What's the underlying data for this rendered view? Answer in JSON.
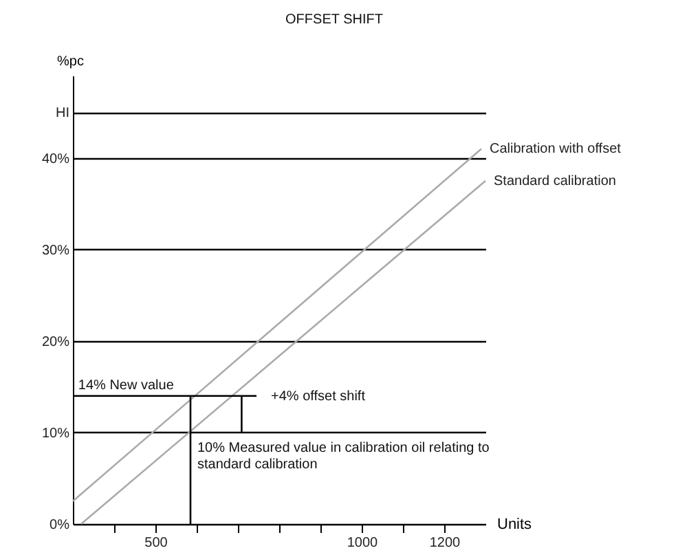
{
  "chart_data": {
    "type": "line",
    "title": "OFFSET SHIFT",
    "xlabel": "Units",
    "ylabel": "%pc",
    "xlim": [
      300,
      1300
    ],
    "ylim": [
      0,
      49
    ],
    "xticks": [
      {
        "value": 400,
        "label": null
      },
      500,
      {
        "value": 600,
        "label": null
      },
      {
        "value": 700,
        "label": null
      },
      {
        "value": 800,
        "label": null
      },
      {
        "value": 900,
        "label": null
      },
      1000,
      {
        "value": 1100,
        "label": null
      },
      1200
    ],
    "yticks": [
      {
        "value": 0,
        "label": "0%"
      },
      {
        "value": 10,
        "label": "10%"
      },
      {
        "value": 20,
        "label": "20%"
      },
      {
        "value": 30,
        "label": "30%"
      },
      {
        "value": 40,
        "label": "40%"
      },
      {
        "value": 45,
        "label": "HI"
      }
    ],
    "grid": "y",
    "legend": false,
    "series": [
      {
        "type": "line",
        "name": "Calibration with offset",
        "color": "#aaaaaa",
        "x": [
          300,
          1290
        ],
        "values": [
          2.5,
          41
        ]
      },
      {
        "type": "line",
        "name": "Standard calibration",
        "color": "#aaaaaa",
        "x": [
          320,
          1300
        ],
        "values": [
          0,
          37.5
        ]
      },
      {
        "type": "line",
        "color": "#000000",
        "x": [
          300,
          745
        ],
        "values": [
          14,
          14
        ]
      },
      {
        "type": "line",
        "color": "#000000",
        "x": [
          585,
          585
        ],
        "values": [
          0,
          14
        ]
      },
      {
        "type": "line",
        "color": "#000000",
        "x": [
          709,
          709
        ],
        "values": [
          10,
          14
        ]
      }
    ],
    "annotations": [
      "14%  New value",
      "+4% offset shift",
      {
        "text": "10%  Measured value in calibration oil relating to\nstandard calibration",
        "x": 585,
        "y": 10
      }
    ]
  }
}
